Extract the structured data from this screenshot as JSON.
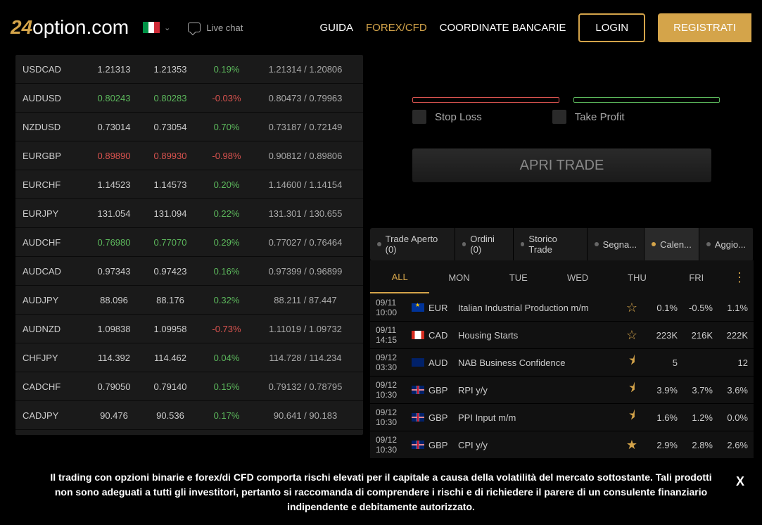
{
  "header": {
    "logo_num": "24",
    "logo_text": "option.com",
    "live_chat": "Live chat",
    "nav": {
      "guida": "GUIDA",
      "forex": "FOREX/CFD",
      "banc": "COORDINATE BANCARIE",
      "login": "LOGIN",
      "register": "REGISTRATI"
    }
  },
  "quotes": [
    {
      "sym": "USDCAD",
      "bid": "1.21313",
      "bidCls": "neutral",
      "ask": "1.21353",
      "askCls": "neutral",
      "chg": "0.19%",
      "chgCls": "up",
      "hl": "1.21314 / 1.20806"
    },
    {
      "sym": "AUDUSD",
      "bid": "0.80243",
      "bidCls": "up",
      "ask": "0.80283",
      "askCls": "up",
      "chg": "-0.03%",
      "chgCls": "down",
      "hl": "0.80473 / 0.79963"
    },
    {
      "sym": "NZDUSD",
      "bid": "0.73014",
      "bidCls": "neutral",
      "ask": "0.73054",
      "askCls": "neutral",
      "chg": "0.70%",
      "chgCls": "up",
      "hl": "0.73187 / 0.72149"
    },
    {
      "sym": "EURGBP",
      "bid": "0.89890",
      "bidCls": "down",
      "ask": "0.89930",
      "askCls": "down",
      "chg": "-0.98%",
      "chgCls": "down",
      "hl": "0.90812 / 0.89806"
    },
    {
      "sym": "EURCHF",
      "bid": "1.14523",
      "bidCls": "neutral",
      "ask": "1.14573",
      "askCls": "neutral",
      "chg": "0.20%",
      "chgCls": "up",
      "hl": "1.14600 / 1.14154"
    },
    {
      "sym": "EURJPY",
      "bid": "131.054",
      "bidCls": "neutral",
      "ask": "131.094",
      "askCls": "neutral",
      "chg": "0.22%",
      "chgCls": "up",
      "hl": "131.301 / 130.655"
    },
    {
      "sym": "AUDCHF",
      "bid": "0.76980",
      "bidCls": "up",
      "ask": "0.77070",
      "askCls": "up",
      "chg": "0.29%",
      "chgCls": "up",
      "hl": "0.77027 / 0.76464"
    },
    {
      "sym": "AUDCAD",
      "bid": "0.97343",
      "bidCls": "neutral",
      "ask": "0.97423",
      "askCls": "neutral",
      "chg": "0.16%",
      "chgCls": "up",
      "hl": "0.97399 / 0.96899"
    },
    {
      "sym": "AUDJPY",
      "bid": "88.096",
      "bidCls": "neutral",
      "ask": "88.176",
      "askCls": "neutral",
      "chg": "0.32%",
      "chgCls": "up",
      "hl": "88.211 / 87.447"
    },
    {
      "sym": "AUDNZD",
      "bid": "1.09838",
      "bidCls": "neutral",
      "ask": "1.09958",
      "askCls": "neutral",
      "chg": "-0.73%",
      "chgCls": "down",
      "hl": "1.11019 / 1.09732"
    },
    {
      "sym": "CHFJPY",
      "bid": "114.392",
      "bidCls": "neutral",
      "ask": "114.462",
      "askCls": "neutral",
      "chg": "0.04%",
      "chgCls": "up",
      "hl": "114.728 / 114.234"
    },
    {
      "sym": "CADCHF",
      "bid": "0.79050",
      "bidCls": "neutral",
      "ask": "0.79140",
      "askCls": "neutral",
      "chg": "0.15%",
      "chgCls": "up",
      "hl": "0.79132 / 0.78795"
    },
    {
      "sym": "CADJPY",
      "bid": "90.476",
      "bidCls": "neutral",
      "ask": "90.536",
      "askCls": "neutral",
      "chg": "0.17%",
      "chgCls": "up",
      "hl": "90.641 / 90.183"
    }
  ],
  "trade": {
    "stop_loss": "Stop Loss",
    "take_profit": "Take Profit",
    "open_trade": "APRI TRADE"
  },
  "tabs": {
    "trade_aperto": "Trade Aperto (0)",
    "ordini": "Ordini (0)",
    "storico": "Storico Trade",
    "segna": "Segna...",
    "calen": "Calen...",
    "aggio": "Aggio..."
  },
  "days": {
    "all": "ALL",
    "mon": "MON",
    "tue": "TUE",
    "wed": "WED",
    "thu": "THU",
    "fri": "FRI"
  },
  "events": [
    {
      "date": "09/11",
      "time": "10:00",
      "flag": "eu",
      "cur": "EUR",
      "name": "Italian Industrial Production m/m",
      "star": "☆",
      "v1": "0.1%",
      "v2": "-0.5%",
      "v3": "1.1%"
    },
    {
      "date": "09/11",
      "time": "14:15",
      "flag": "ca",
      "cur": "CAD",
      "name": "Housing Starts",
      "star": "☆",
      "v1": "223K",
      "v2": "216K",
      "v3": "222K"
    },
    {
      "date": "09/12",
      "time": "03:30",
      "flag": "au",
      "cur": "AUD",
      "name": "NAB Business Confidence",
      "star": "⯨",
      "v1": "5",
      "v2": "",
      "v3": "12"
    },
    {
      "date": "09/12",
      "time": "10:30",
      "flag": "gb",
      "cur": "GBP",
      "name": "RPI y/y",
      "star": "⯨",
      "v1": "3.9%",
      "v2": "3.7%",
      "v3": "3.6%"
    },
    {
      "date": "09/12",
      "time": "10:30",
      "flag": "gb",
      "cur": "GBP",
      "name": "PPI Input m/m",
      "star": "⯨",
      "v1": "1.6%",
      "v2": "1.2%",
      "v3": "0.0%"
    },
    {
      "date": "09/12",
      "time": "10:30",
      "flag": "gb",
      "cur": "GBP",
      "name": "CPI y/y",
      "star": "★",
      "v1": "2.9%",
      "v2": "2.8%",
      "v3": "2.6%"
    }
  ],
  "disclaimer": "Il trading con opzioni binarie e forex/di CFD comporta rischi elevati per il capitale a causa della volatilità del mercato sottostante. Tali prodotti non sono adeguati a tutti gli investitori, pertanto si raccomanda di comprendere i rischi e di richiedere il parere di un consulente finanziario indipendente e debitamente autorizzato.",
  "disclaimer_close": "X",
  "colors": {
    "accent": "#d4a44a",
    "up": "#5cb85c",
    "down": "#d9534f",
    "bg": "#000000",
    "panel": "#1a1a1a"
  }
}
